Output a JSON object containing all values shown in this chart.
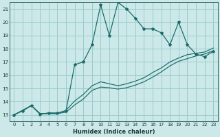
{
  "xlabel": "Humidex (Indice chaleur)",
  "bg_color": "#cce8e8",
  "grid_color": "#99cccc",
  "line_color": "#1a6b6b",
  "xlim": [
    -0.5,
    23.5
  ],
  "ylim": [
    12.5,
    21.5
  ],
  "xticks": [
    0,
    1,
    2,
    3,
    4,
    5,
    6,
    7,
    8,
    9,
    10,
    11,
    12,
    13,
    14,
    15,
    16,
    17,
    18,
    19,
    20,
    21,
    22,
    23
  ],
  "yticks": [
    13,
    14,
    15,
    16,
    17,
    18,
    19,
    20,
    21
  ],
  "main_line_x": [
    0,
    1,
    2,
    3,
    4,
    5,
    6,
    7,
    8,
    9,
    10,
    11,
    12,
    13,
    14,
    15,
    16,
    17,
    18,
    19,
    20,
    21,
    22,
    23
  ],
  "main_line_y": [
    13.0,
    13.3,
    13.7,
    13.05,
    13.15,
    13.15,
    13.3,
    16.8,
    17.0,
    18.3,
    21.3,
    19.0,
    21.5,
    21.0,
    20.3,
    19.5,
    19.5,
    19.2,
    18.3,
    20.0,
    18.3,
    17.6,
    17.4,
    17.8
  ],
  "line2_x": [
    0,
    2,
    3,
    4,
    5,
    6,
    7,
    8,
    9,
    10,
    11,
    12,
    13,
    14,
    15,
    16,
    17,
    18,
    19,
    20,
    21,
    22,
    23
  ],
  "line2_y": [
    13.0,
    13.7,
    13.1,
    13.1,
    13.1,
    13.35,
    14.05,
    14.55,
    15.2,
    15.5,
    15.35,
    15.2,
    15.35,
    15.55,
    15.8,
    16.2,
    16.55,
    17.0,
    17.3,
    17.55,
    17.65,
    17.75,
    18.05
  ],
  "line3_x": [
    0,
    2,
    3,
    4,
    5,
    6,
    7,
    8,
    9,
    10,
    11,
    12,
    13,
    14,
    15,
    16,
    17,
    18,
    19,
    20,
    21,
    22,
    23
  ],
  "line3_y": [
    13.0,
    13.7,
    13.1,
    13.1,
    13.1,
    13.2,
    13.75,
    14.2,
    14.85,
    15.1,
    15.05,
    14.95,
    15.05,
    15.25,
    15.5,
    15.85,
    16.25,
    16.7,
    17.05,
    17.25,
    17.45,
    17.6,
    17.85
  ]
}
